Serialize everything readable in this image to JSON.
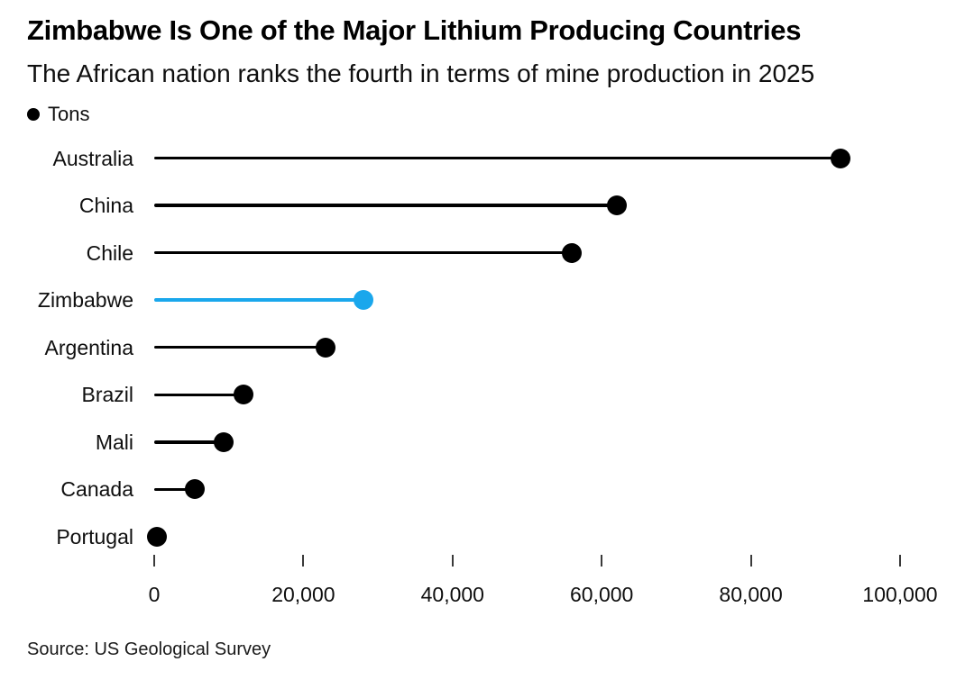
{
  "header": {
    "title": "Zimbabwe Is One of the Major Lithium Producing Countries",
    "subtitle": "The African nation ranks the fourth in terms of mine production in 2025"
  },
  "legend": {
    "marker_icon": "filled-circle-icon",
    "label": "Tons"
  },
  "source": "Source: US Geological Survey",
  "colors": {
    "default_series": "#000000",
    "highlight": "#1aa7ec",
    "text": "#0f0f0f",
    "background": "#ffffff"
  },
  "chart_data": {
    "type": "bar",
    "variant": "lollipop-horizontal",
    "title": "Zimbabwe Is One of the Major Lithium Producing Countries",
    "subtitle": "The African nation ranks the fourth in terms of mine production in 2025",
    "unit": "Tons",
    "categories": [
      "Australia",
      "China",
      "Chile",
      "Zimbabwe",
      "Argentina",
      "Brazil",
      "Mali",
      "Canada",
      "Portugal"
    ],
    "values": [
      92000,
      62000,
      56000,
      28000,
      23000,
      12000,
      9300,
      5500,
      400
    ],
    "highlight_category": "Zimbabwe",
    "xlim": [
      0,
      100000
    ],
    "x_ticks": [
      0,
      20000,
      40000,
      60000,
      80000,
      100000
    ],
    "x_tick_labels": [
      "0",
      "20,000",
      "40,000",
      "60,000",
      "80,000",
      "100,000"
    ],
    "xlabel": "",
    "ylabel": "",
    "grid": false,
    "legend_position": "top-left",
    "source": "US Geological Survey"
  }
}
